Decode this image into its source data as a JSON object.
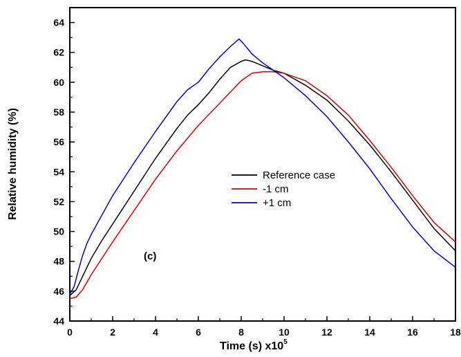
{
  "chart_data": {
    "type": "line",
    "xlabel": "Time (s) x10",
    "xlabel_sup": "5",
    "ylabel": "Relative humidity (%)",
    "xlim": [
      0,
      18
    ],
    "ylim": [
      44,
      65
    ],
    "xticks": [
      0,
      2,
      4,
      6,
      8,
      10,
      12,
      14,
      16,
      18
    ],
    "yticks": [
      44,
      46,
      48,
      50,
      52,
      54,
      56,
      58,
      60,
      62,
      64
    ],
    "annotation": "(c)",
    "legend_position": "center-right",
    "grid": false,
    "series": [
      {
        "name": "Reference case",
        "color": "#000000",
        "x": [
          0,
          0.3,
          0.6,
          1,
          1.5,
          2,
          3,
          4,
          5,
          5.5,
          6,
          6.5,
          7,
          7.5,
          8,
          8.2,
          8.5,
          9,
          9.5,
          10,
          11,
          12,
          13,
          14,
          15,
          16,
          17,
          18
        ],
        "y": [
          45.7,
          46.1,
          47.0,
          48.2,
          49.4,
          50.5,
          52.7,
          54.9,
          56.9,
          57.8,
          58.5,
          59.3,
          60.2,
          61.0,
          61.4,
          61.5,
          61.4,
          61.1,
          60.8,
          60.6,
          59.8,
          58.8,
          57.4,
          55.8,
          54.0,
          52.1,
          50.2,
          48.7
        ]
      },
      {
        "name": "-1 cm",
        "color": "#e00000",
        "x": [
          0,
          0.3,
          0.6,
          1,
          1.5,
          2,
          3,
          4,
          5,
          6,
          7,
          8,
          8.5,
          9,
          9.5,
          10,
          11,
          12,
          13,
          14,
          15,
          16,
          17,
          18
        ],
        "y": [
          45.5,
          45.6,
          46.1,
          47.1,
          48.2,
          49.3,
          51.4,
          53.5,
          55.4,
          57.1,
          58.6,
          60.1,
          60.6,
          60.7,
          60.7,
          60.6,
          60.1,
          59.1,
          57.8,
          56.1,
          54.3,
          52.4,
          50.6,
          49.3
        ]
      },
      {
        "name": "+1 cm",
        "color": "#0000e0",
        "x": [
          0,
          0.2,
          0.4,
          0.6,
          0.8,
          1,
          1.5,
          2,
          3,
          4,
          5,
          5.5,
          6,
          6.5,
          7,
          7.5,
          7.9,
          8.1,
          8.5,
          9,
          10,
          11,
          12,
          13,
          14,
          15,
          16,
          17,
          18
        ],
        "y": [
          45.8,
          46.3,
          47.4,
          48.4,
          49.2,
          49.8,
          51.1,
          52.4,
          54.6,
          56.7,
          58.7,
          59.5,
          60.0,
          60.9,
          61.7,
          62.4,
          62.9,
          62.6,
          61.9,
          61.3,
          60.3,
          59.1,
          57.7,
          56.0,
          54.2,
          52.2,
          50.3,
          48.7,
          47.6
        ]
      }
    ]
  }
}
